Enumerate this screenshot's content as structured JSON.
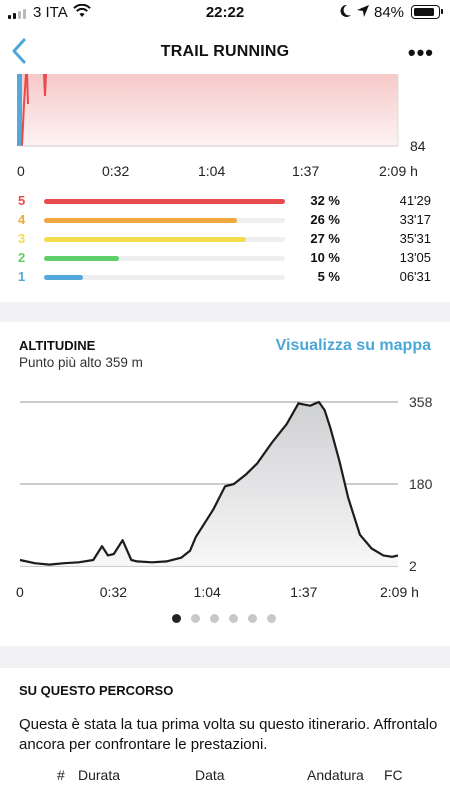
{
  "status_bar": {
    "carrier": "3 ITA",
    "time": "22:22",
    "battery": "84%"
  },
  "nav": {
    "title": "TRAIL RUNNING",
    "more": "•••"
  },
  "hr_chart": {
    "y_label": "84",
    "x_ticks": [
      "0",
      "0:32",
      "1:04",
      "1:37",
      "2:09 h"
    ]
  },
  "zones": [
    {
      "zone": "5",
      "percent_label": "32 %",
      "duration": "41'29",
      "fill": 1.0,
      "color": "#e84b4b"
    },
    {
      "zone": "4",
      "percent_label": "26 %",
      "duration": "33'17",
      "fill": 0.8,
      "color": "#eea83e"
    },
    {
      "zone": "3",
      "percent_label": "27 %",
      "duration": "35'31",
      "fill": 0.84,
      "color": "#f3dc4e"
    },
    {
      "zone": "2",
      "percent_label": "10 %",
      "duration": "13'05",
      "fill": 0.31,
      "color": "#5fcf6a"
    },
    {
      "zone": "1",
      "percent_label": "5 %",
      "duration": "06'31",
      "fill": 0.16,
      "color": "#53a8dc"
    }
  ],
  "altitude": {
    "title": "ALTITUDINE",
    "subtitle": "Punto più alto 359 m",
    "map_link": "Visualizza su mappa"
  },
  "chart_data": {
    "type": "area",
    "x_ticks": [
      "0",
      "0:32",
      "1:04",
      "1:37",
      "2:09 h"
    ],
    "y_ticks": [
      "358",
      "180",
      "2"
    ],
    "ylim": [
      2,
      358
    ],
    "xlabel": "",
    "ylabel": "",
    "x_minutes": [
      0,
      5,
      10,
      15,
      20,
      25,
      28,
      30,
      32,
      35,
      38,
      40,
      45,
      50,
      55,
      58,
      60,
      63,
      66,
      70,
      73,
      77,
      81,
      86,
      91,
      95,
      99,
      102,
      104,
      106,
      109,
      112,
      116,
      120,
      124,
      127,
      129
    ],
    "y_values": [
      15,
      8,
      5,
      8,
      10,
      15,
      45,
      25,
      28,
      58,
      15,
      12,
      10,
      12,
      20,
      35,
      65,
      95,
      125,
      175,
      180,
      200,
      225,
      270,
      310,
      355,
      350,
      358,
      340,
      300,
      230,
      150,
      70,
      40,
      25,
      22,
      25
    ]
  },
  "pager": {
    "count": 6,
    "active": 0
  },
  "route": {
    "title": "SU QUESTO PERCORSO",
    "text": "Questa è stata la tua prima volta su questo itinerario. Affrontalo ancora per confrontare le prestazioni.",
    "columns": [
      "#",
      "Durata",
      "Data",
      "Andatura",
      "FC"
    ]
  },
  "colors": {
    "accent": "#4aa7d8",
    "hr_fill": "#f9dede",
    "hr_line": "#e84b4b"
  }
}
